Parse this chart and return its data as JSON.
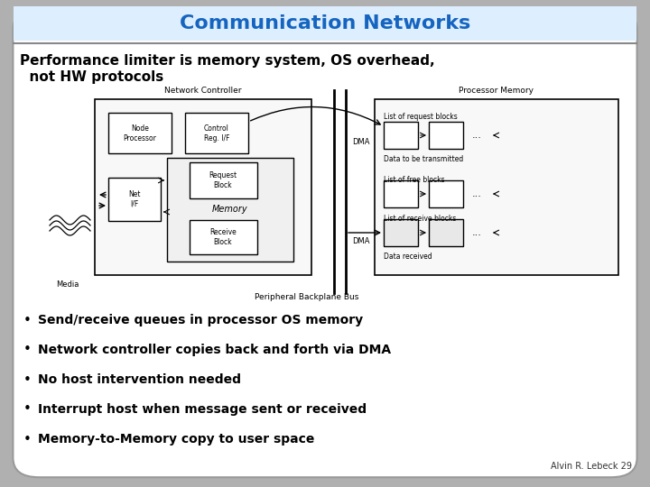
{
  "title": "Communication Networks",
  "title_color": "#1565c0",
  "subtitle_line1": "Performance limiter is memory system, OS overhead,",
  "subtitle_line2": "  not HW protocols",
  "bullet_points": [
    "Send/receive queues in processor OS memory",
    "Network controller copies back and forth via DMA",
    "No host intervention needed",
    "Interrupt host when message sent or received",
    "Memory-to-Memory copy to user space"
  ],
  "footer": "Alvin R. Lebeck 29",
  "outer_bg": "#b0b0b0",
  "slide_bg": "#ffffff",
  "title_bg": "#ddeeff"
}
